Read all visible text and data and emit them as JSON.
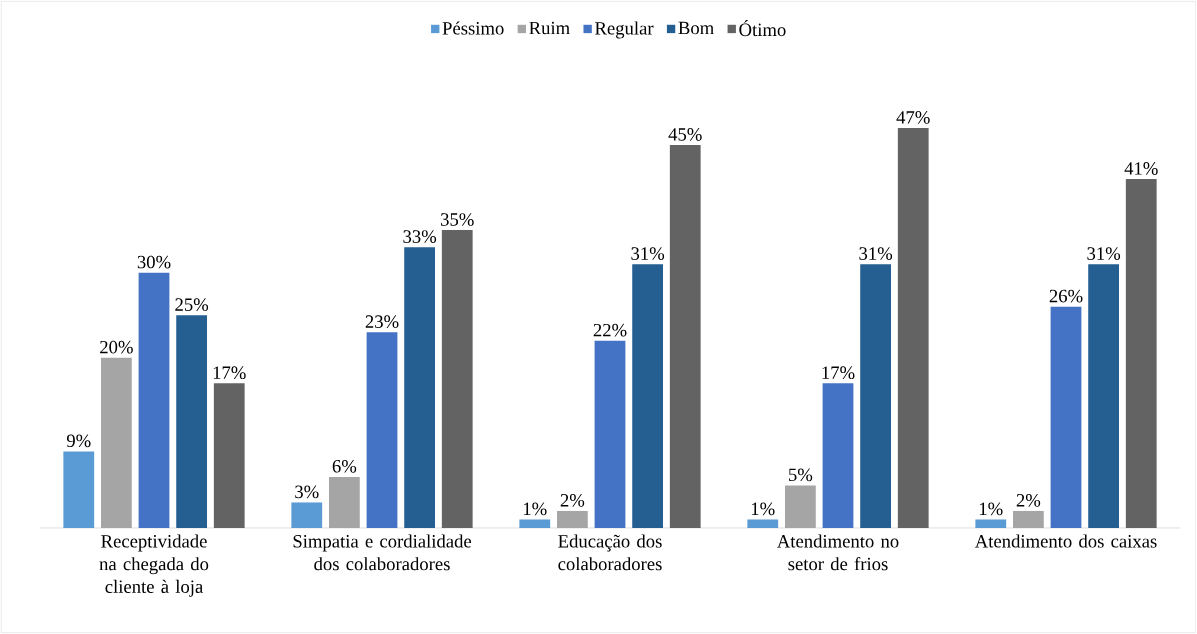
{
  "chart_data": {
    "type": "bar",
    "categories": [
      "Receptividade na chegada do cliente à loja",
      "Simpatia e cordialidade dos colaboradores",
      "Educação dos colaboradores",
      "Atendimento no setor de frios",
      "Atendimento dos caixas"
    ],
    "series": [
      {
        "name": "Péssimo",
        "color": "#5b9bd5",
        "values": [
          9,
          3,
          1,
          1,
          1
        ],
        "value_labels": [
          "9%",
          "3%",
          "1%",
          "1%",
          "1%"
        ]
      },
      {
        "name": "Ruim",
        "color": "#a5a5a5",
        "values": [
          20,
          6,
          2,
          5,
          2
        ],
        "value_labels": [
          "20%",
          "6%",
          "2%",
          "5%",
          "2%"
        ]
      },
      {
        "name": "Regular",
        "color": "#4472c4",
        "values": [
          30,
          23,
          22,
          17,
          26
        ],
        "value_labels": [
          "30%",
          "23%",
          "22%",
          "17%",
          "26%"
        ]
      },
      {
        "name": "Bom",
        "color": "#255e91",
        "values": [
          25,
          33,
          31,
          31,
          31
        ],
        "value_labels": [
          "25%",
          "33%",
          "31%",
          "31%",
          "31%"
        ]
      },
      {
        "name": "Ótimo",
        "color": "#636363",
        "values": [
          17,
          35,
          45,
          47,
          41
        ],
        "value_labels": [
          "17%",
          "35%",
          "45%",
          "47%",
          "41%"
        ]
      }
    ],
    "legend": "top",
    "tick_labels": "x"
  }
}
